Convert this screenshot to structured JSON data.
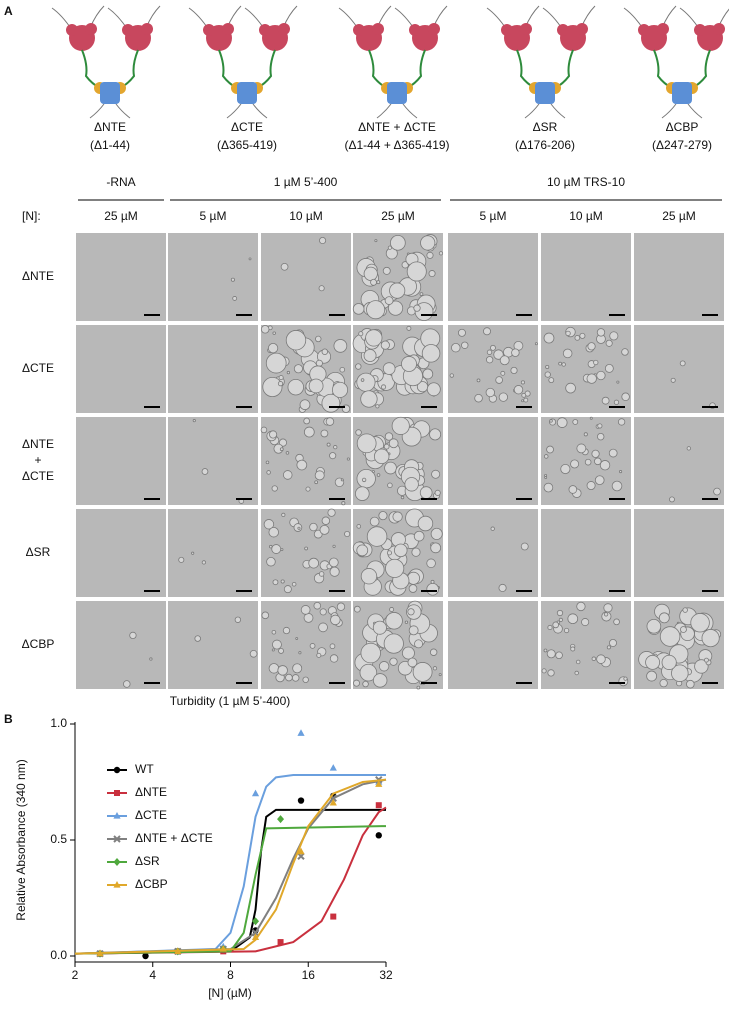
{
  "panel_labels": [
    "A",
    "B"
  ],
  "constructs": [
    {
      "name": "ΔNTE",
      "deletion": "(Δ1-44)"
    },
    {
      "name": "ΔCTE",
      "deletion": "(Δ365-419)"
    },
    {
      "name": "ΔNTE + ΔCTE",
      "deletion": "(Δ1-44 + Δ365-419)"
    },
    {
      "name": "ΔSR",
      "deletion": "(Δ176-206)"
    },
    {
      "name": "ΔCBP",
      "deletion": "(Δ247-279)"
    }
  ],
  "micrographs": {
    "n_label": "[N]:",
    "groups": [
      {
        "label": "-RNA",
        "columns": [
          "25 µM"
        ]
      },
      {
        "label": "1 µM 5’-400",
        "columns": [
          "5 µM",
          "10 µM",
          "25 µM"
        ]
      },
      {
        "label": "10 µM TRS-10",
        "columns": [
          "5 µM",
          "10 µM",
          "25 µM"
        ]
      }
    ],
    "rows": [
      "ΔNTE",
      "ΔCTE",
      [
        "ΔNTE",
        "+",
        "ΔCTE"
      ],
      "ΔSR",
      "ΔCBP"
    ]
  },
  "chart_data": {
    "type": "line",
    "title": "Turbidity (1 µM 5’-400)",
    "x_label": "[N] (µM)",
    "y_label": "Relative Absorbance (340 nm)",
    "x_scale": "log2",
    "xlim": [
      2,
      32
    ],
    "xticks": [
      2,
      4,
      8,
      16,
      32
    ],
    "ylim": [
      0,
      1.0
    ],
    "yticks": [
      {
        "value": 0,
        "label": "0.0"
      },
      {
        "value": 0.5,
        "label": "0.5"
      },
      {
        "value": 1.0,
        "label": "1.0"
      }
    ],
    "legend": "upper-left",
    "series": [
      {
        "name": "WT",
        "color": "#000000",
        "marker": "circle",
        "x": [
          2.5,
          3.75,
          5,
          7.5,
          10,
          15,
          20,
          30
        ],
        "values": [
          0.01,
          0.0,
          0.02,
          0.03,
          0.11,
          0.67,
          0.69,
          0.52
        ],
        "fit": {
          "x": [
            2,
            8,
            9.5,
            10,
            10.5,
            11,
            12,
            32
          ],
          "values": [
            0.01,
            0.02,
            0.08,
            0.2,
            0.45,
            0.6,
            0.63,
            0.63
          ]
        }
      },
      {
        "name": "ΔNTE",
        "color": "#c9303e",
        "marker": "square",
        "x": [
          2.5,
          5,
          7.5,
          12.5,
          20,
          30
        ],
        "values": [
          0.01,
          0.02,
          0.02,
          0.06,
          0.17,
          0.65
        ],
        "fit": {
          "x": [
            2,
            10,
            14,
            18,
            22,
            26,
            30,
            32
          ],
          "values": [
            0.01,
            0.02,
            0.06,
            0.15,
            0.33,
            0.52,
            0.62,
            0.64
          ]
        }
      },
      {
        "name": "ΔCTE",
        "color": "#6a9fde",
        "marker": "triangle",
        "x": [
          2.5,
          5,
          7.5,
          10,
          15,
          20,
          30
        ],
        "values": [
          0.01,
          0.02,
          0.04,
          0.7,
          0.96,
          0.81,
          0.75
        ],
        "fit": {
          "x": [
            2,
            7,
            8,
            9,
            10,
            11,
            12,
            14,
            32
          ],
          "values": [
            0.01,
            0.03,
            0.1,
            0.3,
            0.6,
            0.73,
            0.77,
            0.78,
            0.78
          ]
        }
      },
      {
        "name": "ΔNTE + ΔCTE",
        "color": "#808080",
        "marker": "cross",
        "x": [
          2.5,
          5,
          7.5,
          10,
          15,
          20,
          30
        ],
        "values": [
          0.01,
          0.02,
          0.03,
          0.1,
          0.43,
          0.68,
          0.76
        ],
        "fit": {
          "x": [
            2,
            8,
            10,
            12,
            14,
            16,
            20,
            26,
            32
          ],
          "values": [
            0.01,
            0.03,
            0.1,
            0.25,
            0.42,
            0.55,
            0.68,
            0.74,
            0.76
          ]
        }
      },
      {
        "name": "ΔSR",
        "color": "#4fa83d",
        "marker": "diamond",
        "x": [
          2.5,
          5,
          7.5,
          10,
          12.5
        ],
        "values": [
          0.01,
          0.02,
          0.03,
          0.15,
          0.59
        ],
        "fit": {
          "x": [
            2,
            8,
            9,
            10,
            11,
            32
          ],
          "values": [
            0.01,
            0.02,
            0.1,
            0.35,
            0.55,
            0.56
          ]
        }
      },
      {
        "name": "ΔCBP",
        "color": "#e0a82a",
        "marker": "triangle",
        "x": [
          2.5,
          5,
          7.5,
          10,
          15,
          20,
          30
        ],
        "values": [
          0.01,
          0.02,
          0.03,
          0.08,
          0.45,
          0.66,
          0.74
        ],
        "fit": {
          "x": [
            2,
            9,
            10,
            12,
            14,
            16,
            20,
            26,
            32
          ],
          "values": [
            0.01,
            0.03,
            0.07,
            0.2,
            0.4,
            0.56,
            0.7,
            0.75,
            0.76
          ]
        }
      }
    ]
  }
}
